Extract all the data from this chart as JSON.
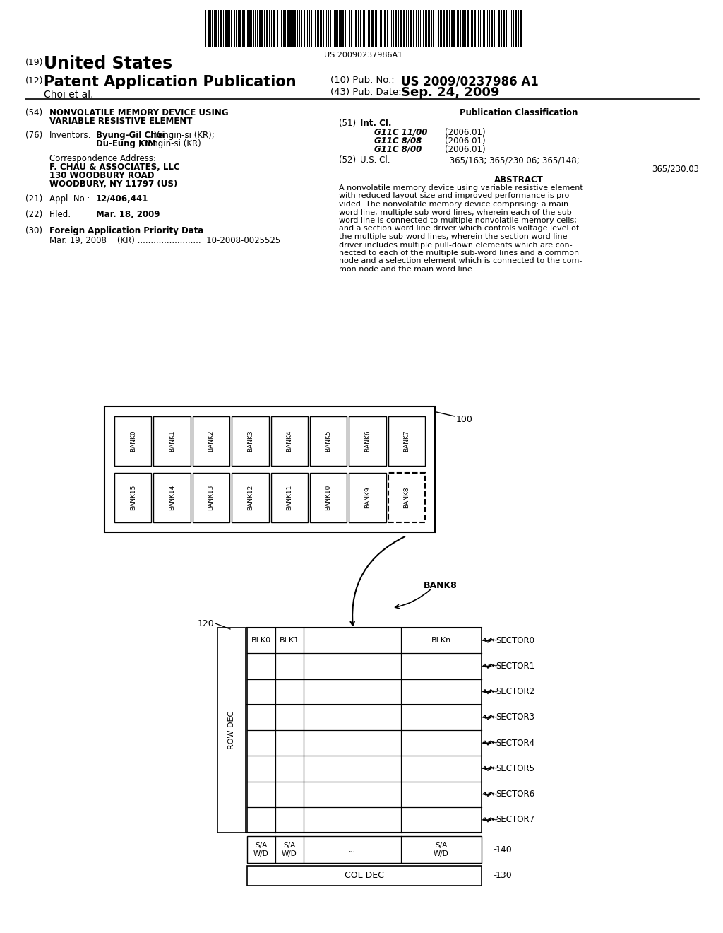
{
  "bg_color": "#ffffff",
  "barcode_text": "US 20090237986A1",
  "banks_row1": [
    "BANK0",
    "BANK1",
    "BANK2",
    "BANK3",
    "BANK4",
    "BANK5",
    "BANK6",
    "BANK7"
  ],
  "banks_row2": [
    "BANK15",
    "BANK14",
    "BANK13",
    "BANK12",
    "BANK11",
    "BANK10",
    "BANK9",
    "BANK8"
  ],
  "sectors": [
    "SECTOR0",
    "SECTOR1",
    "SECTOR2",
    "SECTOR3",
    "SECTOR4",
    "SECTOR5",
    "SECTOR6",
    "SECTOR7"
  ],
  "sa_wd_labels": [
    "S/A\nW/D",
    "S/A\nW/D",
    "...",
    "S/A\nW/D"
  ]
}
